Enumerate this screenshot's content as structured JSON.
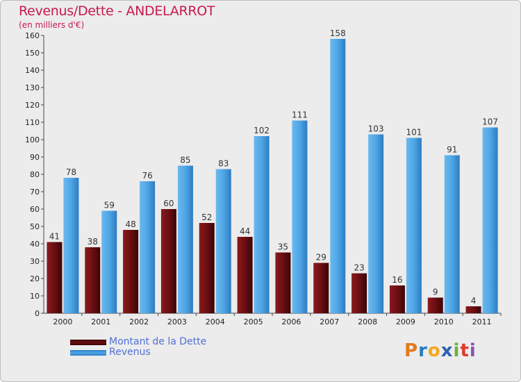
{
  "title": "Revenus/Dette - ANDELARROT",
  "subtitle": "(en milliers d'€)",
  "legend": {
    "debt_label": "Montant de la Dette",
    "revenue_label": "Revenus"
  },
  "logo": {
    "text": "Proxiti",
    "letters": [
      "P",
      "r",
      "o",
      "x",
      "i",
      "t",
      "i"
    ],
    "letter_colors": [
      "#e07b1c",
      "#2a7ac0",
      "#f2a81d",
      "#2f5fb5",
      "#6bb13a",
      "#e03a2c",
      "#8a54b0"
    ]
  },
  "colors": {
    "debt": "#6b0f12",
    "revenue": "#4ea6e6",
    "background": "#ececec",
    "axis": "#444444",
    "title": "#c8194e"
  },
  "chart_data": {
    "type": "bar",
    "categories": [
      "2000",
      "2001",
      "2002",
      "2003",
      "2004",
      "2005",
      "2006",
      "2007",
      "2008",
      "2009",
      "2010",
      "2011"
    ],
    "series": [
      {
        "name": "Montant de la Dette",
        "values": [
          41,
          38,
          48,
          60,
          52,
          44,
          35,
          29,
          23,
          16,
          9,
          4
        ]
      },
      {
        "name": "Revenus",
        "values": [
          78,
          59,
          76,
          85,
          83,
          102,
          111,
          158,
          103,
          101,
          91,
          107
        ]
      }
    ],
    "ylim": [
      0,
      160
    ],
    "yticks": [
      0,
      10,
      20,
      30,
      40,
      50,
      60,
      70,
      80,
      90,
      100,
      110,
      120,
      130,
      140,
      150,
      160
    ],
    "xlabel": "",
    "ylabel": "",
    "legend_position": "bottom-left",
    "grid": false
  }
}
